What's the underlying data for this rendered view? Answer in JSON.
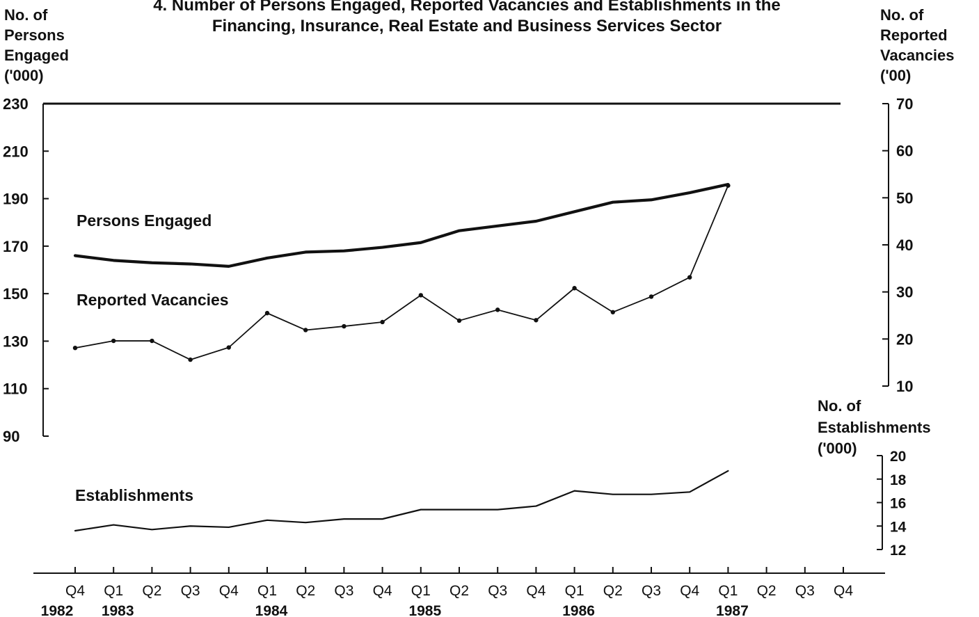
{
  "chart_data": {
    "type": "line",
    "title_line1": "4. Number of Persons Engaged, Reported Vacancies and Establishments in the",
    "title_line2": "Financing, Insurance, Real Estate and Business Services Sector",
    "left_axis": {
      "title_lines": [
        "No. of",
        "Persons",
        "Engaged",
        "('000)"
      ],
      "range": [
        90,
        230
      ],
      "ticks": [
        230,
        210,
        190,
        170,
        150,
        130,
        110,
        90
      ]
    },
    "right_axis": {
      "title_lines": [
        "No. of",
        "Reported",
        "Vacancies",
        "('00)"
      ],
      "range": [
        10,
        70
      ],
      "ticks": [
        70,
        60,
        50,
        40,
        30,
        20,
        10
      ]
    },
    "establishments_axis": {
      "title_lines": [
        "No. of",
        "Establishments",
        "('000)"
      ],
      "range": [
        12,
        20
      ],
      "ticks": [
        20,
        18,
        16,
        14,
        12
      ]
    },
    "x_axis": {
      "quarters": [
        "Q4",
        "Q1",
        "Q2",
        "Q3",
        "Q4",
        "Q1",
        "Q2",
        "Q3",
        "Q4",
        "Q1",
        "Q2",
        "Q3",
        "Q4",
        "Q1",
        "Q2",
        "Q3",
        "Q4",
        "Q1",
        "Q2",
        "Q3",
        "Q4"
      ],
      "years": [
        {
          "label": "1982",
          "index": 0
        },
        {
          "label": "1983",
          "index": 1
        },
        {
          "label": "1984",
          "index": 5
        },
        {
          "label": "1985",
          "index": 9
        },
        {
          "label": "1986",
          "index": 13
        },
        {
          "label": "1987",
          "index": 17
        }
      ]
    },
    "series": [
      {
        "name": "Persons Engaged",
        "axis": "left",
        "values": [
          166,
          164,
          163,
          162.5,
          161.5,
          165,
          167.5,
          168,
          169.5,
          171.5,
          176.5,
          178.5,
          180.5,
          184.5,
          188.5,
          189.5,
          192.5,
          196
        ]
      },
      {
        "name": "Reported Vacancies",
        "axis": "right",
        "values": [
          18.1,
          19.6,
          19.6,
          15.6,
          18.2,
          25.5,
          21.9,
          22.7,
          23.6,
          29.3,
          23.9,
          26.2,
          24.0,
          30.8,
          25.7,
          29.0,
          33.1,
          52.6
        ]
      },
      {
        "name": "Establishments",
        "axis": "establishments",
        "values": [
          13.6,
          14.1,
          13.7,
          14.0,
          13.9,
          14.5,
          14.3,
          14.6,
          14.6,
          15.4,
          15.4,
          15.4,
          15.7,
          17.0,
          16.7,
          16.7,
          16.9,
          18.7
        ]
      }
    ]
  }
}
